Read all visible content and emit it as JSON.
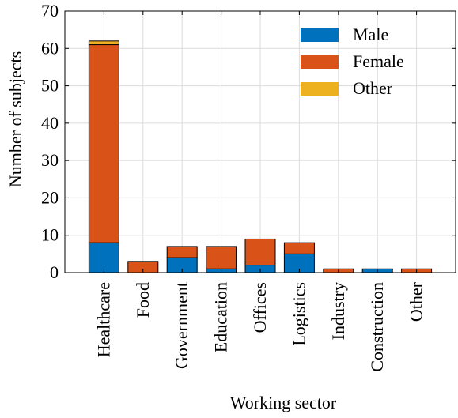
{
  "chart_data": {
    "type": "bar",
    "stacked": true,
    "categories": [
      "Healthcare",
      "Food",
      "Government",
      "Education",
      "Offices",
      "Logistics",
      "Industry",
      "Construction",
      "Other"
    ],
    "series": [
      {
        "name": "Male",
        "color": "#0072BD",
        "values": [
          8,
          0,
          4,
          1,
          2,
          5,
          0,
          1,
          0
        ]
      },
      {
        "name": "Female",
        "color": "#D95319",
        "values": [
          53,
          3,
          3,
          6,
          7,
          3,
          1,
          0,
          1
        ]
      },
      {
        "name": "Other",
        "color": "#EDB120",
        "values": [
          1,
          0,
          0,
          0,
          0,
          0,
          0,
          0,
          0
        ]
      }
    ],
    "xlabel": "Working sector",
    "ylabel": "Number of subjects",
    "ylim": [
      0,
      70
    ],
    "yticks": [
      0,
      10,
      20,
      30,
      40,
      50,
      60,
      70
    ],
    "grid": true,
    "legend_position": "top-right"
  }
}
